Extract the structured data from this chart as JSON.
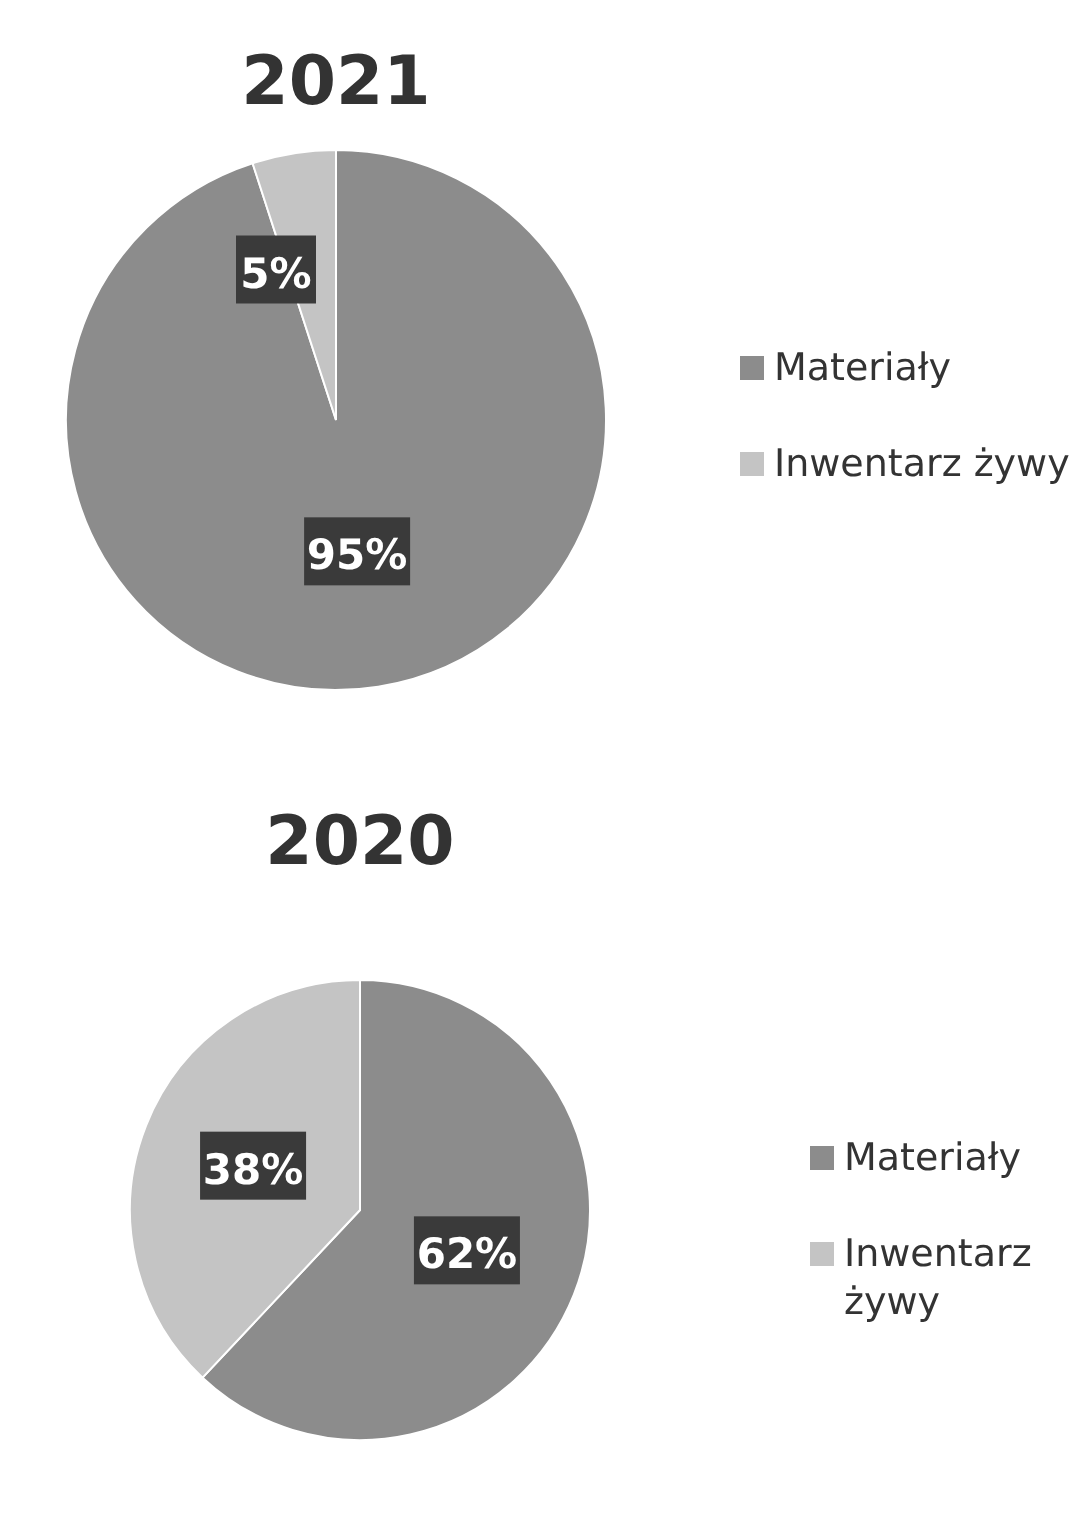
{
  "chart_data": [
    {
      "type": "pie",
      "title": "2021",
      "categories": [
        "Materiały",
        "Inwentarz żywy"
      ],
      "values": [
        95,
        5
      ],
      "colors": [
        "#8c8c8c",
        "#c4c4c4"
      ],
      "value_labels": [
        "95%",
        "5%"
      ],
      "legend": "right"
    },
    {
      "type": "pie",
      "title": "2020",
      "categories": [
        "Materiały",
        "Inwentarz żywy"
      ],
      "values": [
        62,
        38
      ],
      "colors": [
        "#8c8c8c",
        "#c4c4c4"
      ],
      "value_labels": [
        "62%",
        "38%"
      ],
      "legend": "right"
    }
  ]
}
